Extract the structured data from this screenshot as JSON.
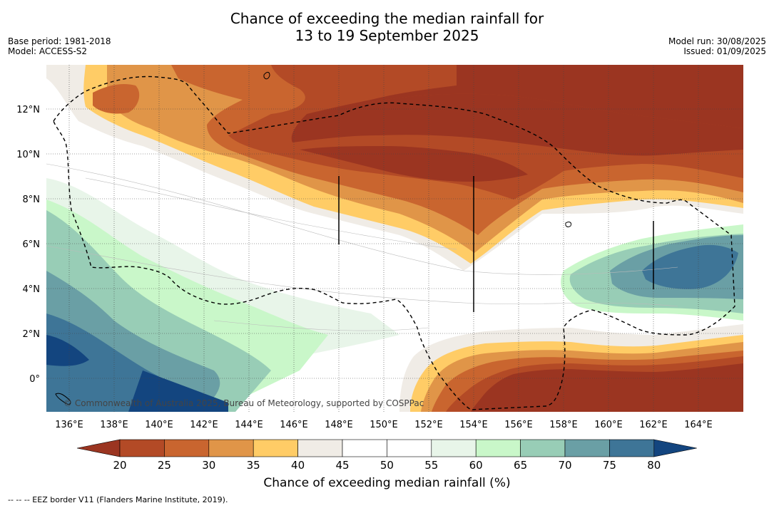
{
  "title_line1": "Chance of exceeding the median rainfall for",
  "title_line2": "13 to 19 September 2025",
  "base_period": "Base period: 1981-2018",
  "model": "Model: ACCESS-S2",
  "model_run": "Model run: 30/08/2025",
  "issued": "Issued: 01/09/2025",
  "copyright": "© Commonwealth of Australia 2025, Bureau of Meteorology, supported by COSPPac",
  "lon_ticks": [
    "136°E",
    "138°E",
    "140°E",
    "142°E",
    "144°E",
    "146°E",
    "148°E",
    "150°E",
    "152°E",
    "154°E",
    "156°E",
    "158°E",
    "160°E",
    "162°E",
    "164°E"
  ],
  "lat_ticks": [
    "12°N",
    "10°N",
    "8°N",
    "6°N",
    "4°N",
    "2°N",
    "0°"
  ],
  "colorbar": {
    "title": "Chance of exceeding median rainfall (%)",
    "ticks": [
      "20",
      "25",
      "30",
      "35",
      "40",
      "45",
      "50",
      "55",
      "60",
      "65",
      "70",
      "75",
      "80"
    ],
    "colors": [
      "#9b3521",
      "#b34a26",
      "#c9652f",
      "#e09548",
      "#ffcc66",
      "#f0ece6",
      "#ffffff",
      "#ffffff",
      "#e8f5e9",
      "#c9f7c9",
      "#98cdb6",
      "#6a9fa5",
      "#3e7597",
      "#13457f"
    ]
  },
  "footnote": "-- -- -- EEZ border V11 (Flanders Marine Institute, 2019)."
}
